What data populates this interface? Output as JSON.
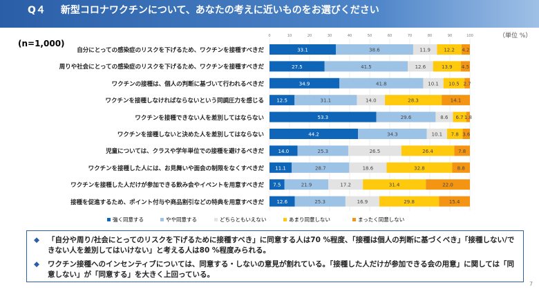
{
  "header": {
    "qnum": "Q４",
    "title": "新型コロナワクチンについて、あなたの考えに近いものをお選びください"
  },
  "sample": "(n=1,000)",
  "unit": "（単位 %）",
  "chart_data": {
    "type": "bar",
    "orientation": "horizontal",
    "stacked": true,
    "xlim": [
      0,
      100
    ],
    "xticks": [
      0,
      10,
      20,
      30,
      40,
      50,
      60,
      70,
      80,
      90,
      100
    ],
    "grid": true,
    "legend": "bottom",
    "categories": [
      "自分にとっての感染症のリスクを下げるため、ワクチンを接種すべきだ",
      "周りや社会にとっての感染症のリスクを下げるため、ワクチンを接種すべきだ",
      "ワクチンの接種は、個人の判断に基づいて行われるべきだ",
      "ワクチンを接種しなければならないという同調圧力を感じる",
      "ワクチンを接種できない人を差別してはならない",
      "ワクチンを接種しないと決めた人を差別してはならない",
      "児童については、クラスや学年単位での接種を避けるべきだ",
      "ワクチンを接種した人には、お見舞いや面会の制限をなくすべきだ",
      "ワクチンを接種した人だけが参加できる飲み会やイベントを用意すべきだ",
      "接種を促進するため、ポイント付与や商品割引などの特典を用意すべきだ"
    ],
    "series": [
      {
        "name": "強く同意する",
        "color": "#0f66b8",
        "values": [
          33.1,
          27.5,
          34.9,
          12.5,
          53.3,
          44.2,
          14.0,
          11.1,
          7.5,
          12.6
        ]
      },
      {
        "name": "やや同意する",
        "color": "#9cc2e6",
        "values": [
          38.6,
          41.5,
          41.8,
          31.1,
          29.6,
          34.3,
          25.3,
          28.7,
          21.9,
          25.3
        ]
      },
      {
        "name": "どちらともいえない",
        "color": "#e3e3e3",
        "values": [
          11.9,
          12.6,
          10.1,
          14.0,
          8.6,
          10.1,
          26.5,
          18.6,
          17.2,
          16.9
        ]
      },
      {
        "name": "あまり同意しない",
        "color": "#ffc90e",
        "values": [
          12.2,
          13.9,
          10.5,
          28.3,
          6.7,
          7.8,
          26.4,
          32.8,
          31.4,
          29.8
        ]
      },
      {
        "name": "まったく同意しない",
        "color": "#f39512",
        "values": [
          4.2,
          4.5,
          2.7,
          14.1,
          1.8,
          3.6,
          7.8,
          8.8,
          22.0,
          15.4
        ]
      }
    ]
  },
  "notes": [
    {
      "bullet": "◆",
      "text": "「自分や周り/社会にとってのリスクを下げるために接種すべき」に同意する人は70 %程度、「接種は個人の判断に基づくべき」「接種しない/できない人を差別してはいけない」と考える人は80 %程度みられる。"
    },
    {
      "bullet": "◆",
      "text": "ワクチン接種へのインセンティブについては、同意する・しないの意見が割れている。「接種した人だけが参加できる会の用意」に関しては「同意しない」が「同意する」を大きく上回っている。"
    }
  ],
  "page": "7"
}
